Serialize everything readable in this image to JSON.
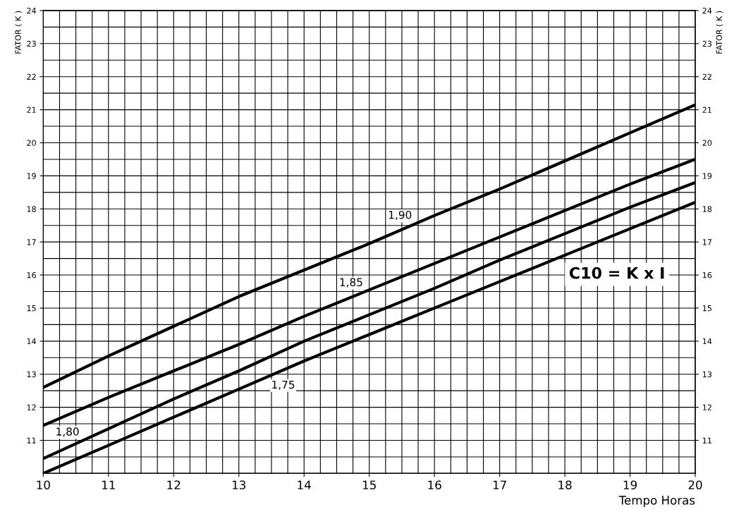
{
  "chart_data": {
    "type": "line",
    "xlabel": "Tempo Horas",
    "ylabel": "FATOR ( K )",
    "y2label": "FATOR ( K )",
    "x": [
      10,
      11,
      12,
      13,
      14,
      15,
      16,
      17,
      18,
      19,
      20
    ],
    "series": [
      {
        "name": "1,90",
        "color": "#000000",
        "values": [
          12.6,
          13.55,
          14.45,
          15.35,
          16.15,
          16.95,
          17.8,
          18.6,
          19.45,
          20.3,
          21.15
        ]
      },
      {
        "name": "1,85",
        "color": "#000000",
        "values": [
          11.45,
          12.3,
          13.1,
          13.9,
          14.75,
          15.55,
          16.35,
          17.15,
          17.95,
          18.75,
          19.5
        ]
      },
      {
        "name": "1,80",
        "color": "#000000",
        "values": [
          10.45,
          11.35,
          12.25,
          13.1,
          14.0,
          14.8,
          15.6,
          16.45,
          17.25,
          18.05,
          18.8
        ]
      },
      {
        "name": "1,75",
        "color": "#000000",
        "values": [
          10.0,
          10.85,
          11.7,
          12.55,
          13.4,
          14.2,
          15.0,
          15.8,
          16.6,
          17.4,
          18.2
        ]
      }
    ],
    "xlim": [
      10,
      20
    ],
    "xticks": [
      10,
      11,
      12,
      13,
      14,
      15,
      16,
      17,
      18,
      19,
      20
    ],
    "ylim": [
      10,
      24
    ],
    "yticks": [
      11,
      12,
      13,
      14,
      15,
      16,
      17,
      18,
      19,
      20,
      21,
      22,
      23,
      24
    ],
    "y2lim": [
      10,
      24
    ],
    "y2ticks": [
      11,
      12,
      13,
      14,
      15,
      16,
      17,
      18,
      19,
      20,
      21,
      22,
      23,
      24
    ],
    "annotations": [
      "C10 = K x I"
    ],
    "grid": true,
    "legend": "center",
    "marker": "none",
    "line_style": "solid"
  }
}
